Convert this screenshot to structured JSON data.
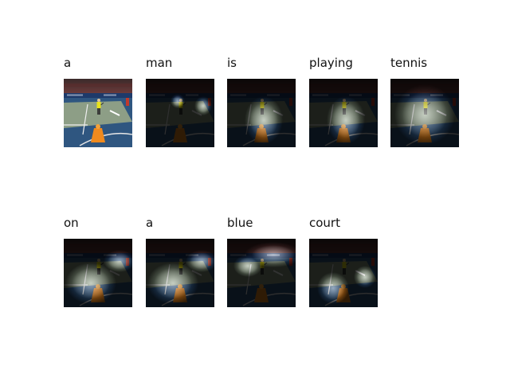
{
  "caption_words": [
    {
      "word": "a",
      "attention": "full"
    },
    {
      "word": "man",
      "attention": "spot-center-right"
    },
    {
      "word": "is",
      "attention": "lower-center"
    },
    {
      "word": "playing",
      "attention": "lower-center"
    },
    {
      "word": "tennis",
      "attention": "wide"
    },
    {
      "word": "on",
      "attention": "lower-left-wide"
    },
    {
      "word": "a",
      "attention": "lower-left-wide"
    },
    {
      "word": "blue",
      "attention": "top-band"
    },
    {
      "word": "court",
      "attention": "lower-left"
    }
  ]
}
